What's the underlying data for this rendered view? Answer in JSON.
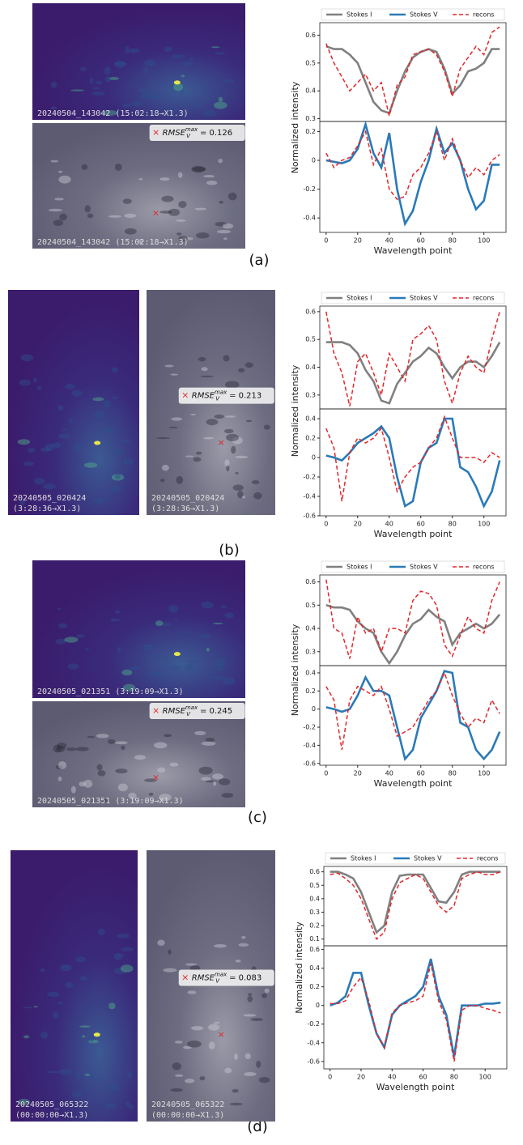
{
  "panels": [
    {
      "label": "(a)",
      "images": [
        {
          "caption": [
            "20240504_143042 (15:02:18→X1.3)"
          ]
        },
        {
          "caption": [
            "20240504_143042 (15:02:18→X1.3)"
          ],
          "rmse": {
            "symbol": "RMSE",
            "sub": "V",
            "sup": "max",
            "text": "= 0.126"
          }
        }
      ]
    },
    {
      "label": "(b)",
      "images": [
        {
          "caption": [
            "20240505_020424",
            "(3:28:36→X1.3)"
          ]
        },
        {
          "caption": [
            "20240505_020424",
            "(3:28:36→X1.3)"
          ],
          "rmse": {
            "symbol": "RMSE",
            "sub": "V",
            "sup": "max",
            "text": "= 0.213"
          }
        }
      ]
    },
    {
      "label": "(c)",
      "images": [
        {
          "caption": [
            "20240505_021351 (3:19:09→X1.3)"
          ]
        },
        {
          "caption": [
            "20240505_021351 (3:19:09→X1.3)"
          ],
          "rmse": {
            "symbol": "RMSE",
            "sub": "V",
            "sup": "max",
            "text": "= 0.245"
          }
        }
      ]
    },
    {
      "label": "(d)",
      "images": [
        {
          "caption": [
            "20240505_065322",
            "(00:00:00→X1.3)"
          ]
        },
        {
          "caption": [
            "20240505_065322",
            "(00:00:00→X1.3)"
          ],
          "rmse": {
            "symbol": "RMSE",
            "sub": "V",
            "sup": "max",
            "text": "= 0.083"
          }
        }
      ]
    }
  ],
  "chart_data": [
    {
      "type": "line",
      "ylabel": "Normalized intensity",
      "xlabel": "Wavelength point",
      "x": [
        0,
        5,
        10,
        15,
        20,
        25,
        30,
        35,
        40,
        45,
        50,
        55,
        60,
        65,
        70,
        75,
        80,
        85,
        90,
        95,
        100,
        105,
        110
      ],
      "xlim": [
        -4,
        114
      ],
      "xticks": [
        0,
        20,
        40,
        60,
        80,
        100
      ],
      "top": {
        "ylim": [
          0.29,
          0.645
        ],
        "yticks": [
          0.3,
          0.4,
          0.5,
          0.6
        ],
        "series": [
          {
            "name": "Stokes I",
            "color": "#808080",
            "values": [
              0.56,
              0.55,
              0.55,
              0.53,
              0.5,
              0.43,
              0.36,
              0.33,
              0.32,
              0.4,
              0.47,
              0.52,
              0.54,
              0.55,
              0.54,
              0.48,
              0.39,
              0.42,
              0.47,
              0.48,
              0.5,
              0.55,
              0.55
            ]
          },
          {
            "name": "recons",
            "color": "#e3262a",
            "values": [
              0.57,
              0.5,
              0.45,
              0.4,
              0.43,
              0.46,
              0.4,
              0.43,
              0.31,
              0.42,
              0.45,
              0.53,
              0.54,
              0.55,
              0.53,
              0.47,
              0.38,
              0.48,
              0.52,
              0.56,
              0.53,
              0.61,
              0.63
            ]
          }
        ]
      },
      "bottom": {
        "ylim": [
          -0.5,
          0.27
        ],
        "yticks": [
          -0.4,
          -0.2,
          0.0,
          0.2
        ],
        "series": [
          {
            "name": "Stokes V",
            "color": "#2a7ab8",
            "values": [
              0.0,
              -0.01,
              -0.02,
              0.0,
              0.08,
              0.25,
              0.05,
              -0.05,
              0.19,
              -0.2,
              -0.44,
              -0.35,
              -0.15,
              0.0,
              0.22,
              0.05,
              0.12,
              0.0,
              -0.2,
              -0.34,
              -0.28,
              -0.03,
              -0.03
            ]
          },
          {
            "color": "#e3262a",
            "values": [
              0.05,
              -0.05,
              0.0,
              0.02,
              0.1,
              0.2,
              -0.03,
              0.08,
              -0.2,
              -0.27,
              -0.25,
              -0.1,
              -0.05,
              0.05,
              0.2,
              0.0,
              0.15,
              0.0,
              -0.12,
              -0.05,
              -0.1,
              0.0,
              0.04
            ]
          }
        ]
      }
    },
    {
      "type": "line",
      "ylabel": "Normalized intensity",
      "xlabel": "Wavelength point",
      "x": [
        0,
        5,
        10,
        15,
        20,
        25,
        30,
        35,
        40,
        45,
        50,
        55,
        60,
        65,
        70,
        75,
        80,
        85,
        90,
        95,
        100,
        105,
        110
      ],
      "xlim": [
        -4,
        114
      ],
      "xticks": [
        0,
        20,
        40,
        60,
        80,
        100
      ],
      "top": {
        "ylim": [
          0.25,
          0.62
        ],
        "yticks": [
          0.3,
          0.4,
          0.5,
          0.6
        ],
        "series": [
          {
            "name": "Stokes I",
            "color": "#808080",
            "values": [
              0.49,
              0.49,
              0.49,
              0.48,
              0.45,
              0.39,
              0.35,
              0.28,
              0.27,
              0.34,
              0.38,
              0.42,
              0.44,
              0.47,
              0.45,
              0.4,
              0.36,
              0.4,
              0.42,
              0.42,
              0.4,
              0.44,
              0.49
            ]
          },
          {
            "name": "recons",
            "color": "#e3262a",
            "values": [
              0.6,
              0.45,
              0.38,
              0.26,
              0.42,
              0.45,
              0.38,
              0.3,
              0.45,
              0.4,
              0.35,
              0.5,
              0.52,
              0.55,
              0.5,
              0.35,
              0.27,
              0.38,
              0.44,
              0.4,
              0.38,
              0.5,
              0.6
            ]
          }
        ]
      },
      "bottom": {
        "ylim": [
          -0.6,
          0.5
        ],
        "yticks": [
          -0.6,
          -0.4,
          -0.2,
          0.0,
          0.2,
          0.4
        ],
        "series": [
          {
            "name": "Stokes V",
            "color": "#2a7ab8",
            "values": [
              0.02,
              0.0,
              -0.03,
              0.05,
              0.15,
              0.2,
              0.25,
              0.32,
              0.2,
              -0.2,
              -0.5,
              -0.45,
              -0.05,
              0.1,
              0.15,
              0.4,
              0.4,
              -0.1,
              -0.15,
              -0.3,
              -0.5,
              -0.35,
              -0.03
            ]
          },
          {
            "color": "#e3262a",
            "values": [
              0.3,
              0.1,
              -0.45,
              0.05,
              0.2,
              0.15,
              0.2,
              0.3,
              0.0,
              -0.35,
              -0.2,
              -0.1,
              -0.05,
              0.1,
              0.2,
              0.42,
              0.2,
              0.0,
              0.0,
              0.0,
              -0.05,
              0.05,
              0.0
            ]
          }
        ]
      }
    },
    {
      "type": "line",
      "ylabel": "Normalized intensity",
      "xlabel": "Wavelength point",
      "x": [
        0,
        5,
        10,
        15,
        20,
        25,
        30,
        35,
        40,
        45,
        50,
        55,
        60,
        65,
        70,
        75,
        80,
        85,
        90,
        95,
        100,
        105,
        110
      ],
      "xlim": [
        -4,
        114
      ],
      "xticks": [
        0,
        20,
        40,
        60,
        80,
        100
      ],
      "top": {
        "ylim": [
          0.24,
          0.63
        ],
        "yticks": [
          0.3,
          0.4,
          0.5,
          0.6
        ],
        "series": [
          {
            "name": "Stokes I",
            "color": "#808080",
            "values": [
              0.5,
              0.49,
              0.49,
              0.48,
              0.43,
              0.4,
              0.38,
              0.3,
              0.25,
              0.3,
              0.37,
              0.42,
              0.44,
              0.48,
              0.45,
              0.43,
              0.33,
              0.38,
              0.4,
              0.42,
              0.4,
              0.42,
              0.46
            ]
          },
          {
            "name": "recons",
            "color": "#e3262a",
            "values": [
              0.61,
              0.4,
              0.38,
              0.27,
              0.45,
              0.38,
              0.4,
              0.3,
              0.4,
              0.4,
              0.38,
              0.52,
              0.56,
              0.55,
              0.5,
              0.33,
              0.28,
              0.37,
              0.45,
              0.4,
              0.38,
              0.52,
              0.6
            ]
          }
        ]
      },
      "bottom": {
        "ylim": [
          -0.62,
          0.48
        ],
        "yticks": [
          -0.6,
          -0.4,
          -0.2,
          0.0,
          0.2,
          0.4
        ],
        "series": [
          {
            "name": "Stokes V",
            "color": "#2a7ab8",
            "values": [
              0.02,
              0.0,
              -0.03,
              0.0,
              0.15,
              0.35,
              0.2,
              0.2,
              0.15,
              -0.2,
              -0.55,
              -0.45,
              -0.1,
              0.05,
              0.2,
              0.42,
              0.4,
              -0.15,
              -0.2,
              -0.45,
              -0.55,
              -0.45,
              -0.25
            ]
          },
          {
            "color": "#e3262a",
            "values": [
              0.25,
              0.1,
              -0.45,
              0.1,
              0.25,
              0.2,
              0.15,
              0.25,
              0.0,
              -0.3,
              -0.25,
              -0.2,
              -0.05,
              0.1,
              0.2,
              0.4,
              0.15,
              -0.05,
              -0.2,
              -0.1,
              -0.15,
              0.1,
              -0.05
            ]
          }
        ]
      }
    },
    {
      "type": "line",
      "ylabel": "Normalized intensity",
      "xlabel": "Wavelength point",
      "x": [
        0,
        5,
        10,
        15,
        20,
        25,
        30,
        35,
        40,
        45,
        50,
        55,
        60,
        65,
        70,
        75,
        80,
        85,
        90,
        95,
        100,
        105,
        110
      ],
      "xlim": [
        -4,
        114
      ],
      "xticks": [
        0,
        20,
        40,
        60,
        80,
        100
      ],
      "top": {
        "ylim": [
          0.05,
          0.64
        ],
        "yticks": [
          0.1,
          0.2,
          0.3,
          0.4,
          0.5,
          0.6
        ],
        "series": [
          {
            "name": "Stokes I",
            "color": "#808080",
            "values": [
              0.6,
              0.6,
              0.58,
              0.55,
              0.45,
              0.3,
              0.15,
              0.2,
              0.45,
              0.57,
              0.58,
              0.58,
              0.58,
              0.48,
              0.38,
              0.37,
              0.45,
              0.58,
              0.6,
              0.6,
              0.6,
              0.6,
              0.6
            ]
          },
          {
            "name": "recons",
            "color": "#e3262a",
            "values": [
              0.58,
              0.59,
              0.55,
              0.5,
              0.4,
              0.25,
              0.1,
              0.15,
              0.4,
              0.52,
              0.55,
              0.58,
              0.55,
              0.45,
              0.35,
              0.3,
              0.35,
              0.55,
              0.58,
              0.6,
              0.58,
              0.58,
              0.6
            ]
          }
        ]
      },
      "bottom": {
        "ylim": [
          -0.68,
          0.64
        ],
        "yticks": [
          -0.6,
          -0.4,
          -0.2,
          0.0,
          0.2,
          0.4,
          0.6
        ],
        "series": [
          {
            "name": "Stokes V",
            "color": "#2a7ab8",
            "values": [
              0.0,
              0.03,
              0.1,
              0.35,
              0.35,
              0.0,
              -0.3,
              -0.45,
              -0.1,
              0.0,
              0.05,
              0.1,
              0.2,
              0.5,
              0.1,
              -0.1,
              -0.55,
              0.0,
              0.0,
              0.0,
              0.02,
              0.02,
              0.03
            ]
          },
          {
            "color": "#e3262a",
            "values": [
              0.02,
              0.02,
              0.05,
              0.2,
              0.3,
              0.05,
              -0.3,
              -0.45,
              -0.08,
              0.0,
              0.03,
              0.05,
              0.1,
              0.45,
              0.05,
              -0.15,
              -0.6,
              -0.05,
              0.0,
              0.0,
              -0.03,
              -0.05,
              -0.08
            ]
          }
        ]
      }
    }
  ]
}
